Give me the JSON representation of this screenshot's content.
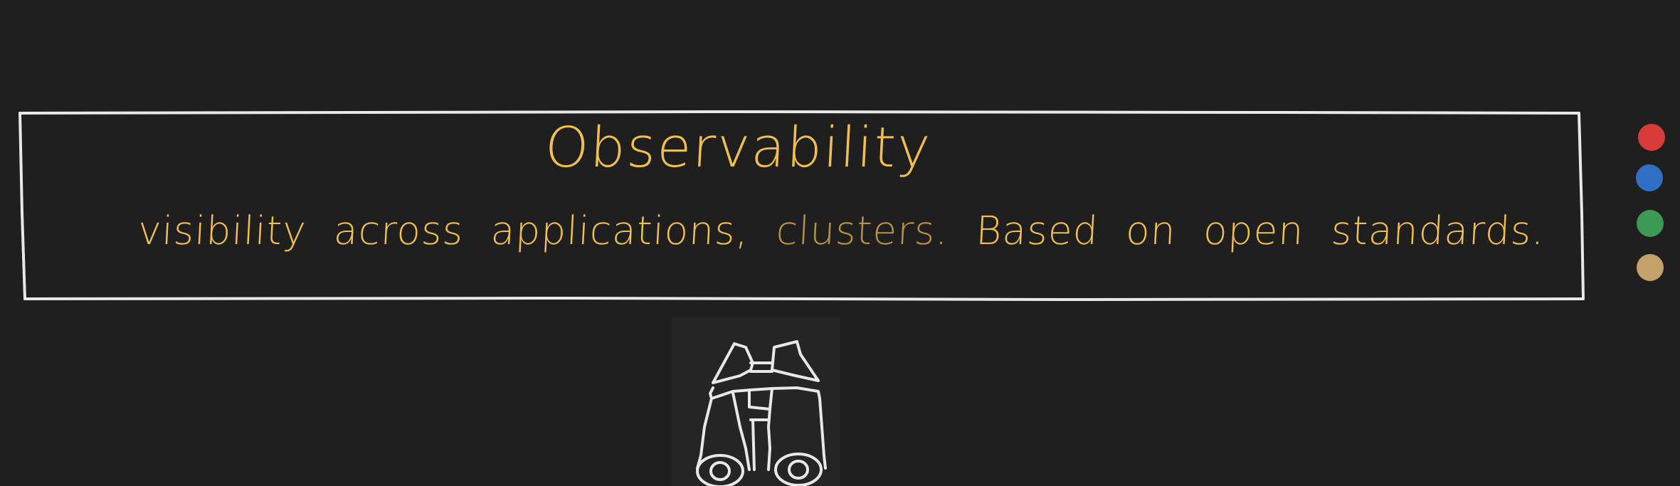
{
  "diagram": {
    "title": "Observability",
    "subtitle_parts": [
      "visibility across applications,",
      "clusters.",
      "Based on open standards."
    ]
  },
  "palette": {
    "swatches": [
      {
        "name": "red",
        "color": "#d93a3a"
      },
      {
        "name": "blue",
        "color": "#2f6fc4"
      },
      {
        "name": "green",
        "color": "#3c9a55"
      },
      {
        "name": "tan",
        "color": "#c4a06a"
      }
    ]
  },
  "colors": {
    "background": "#1f1f1f",
    "stroke": "#e8e8e8",
    "text": "#f2bf4c"
  },
  "icons": {
    "illustration": "binoculars-icon"
  }
}
